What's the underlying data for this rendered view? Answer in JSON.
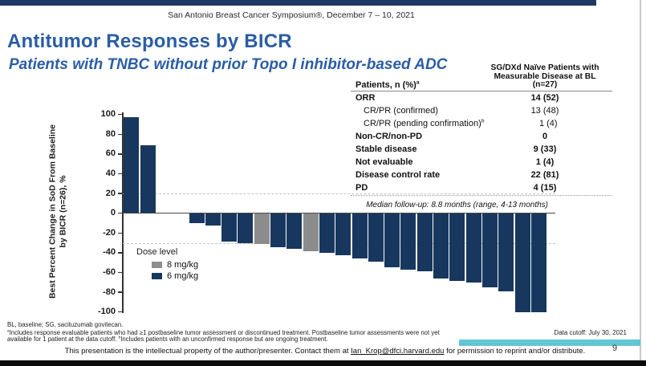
{
  "colors": {
    "accent_blue": "#2a5da4",
    "top_bar_navy": "#1f3864",
    "bar_navy": "#17375e",
    "bar_gray": "#8c8c8c",
    "teal_highlight": "#63c6d4",
    "bottom_bar_black": "#0b0b0b"
  },
  "header": {
    "symposium": "San Antonio Breast Cancer Symposium®, December 7 – 10, 2021",
    "title": "Antitumor Responses by BICR",
    "subtitle": "Patients with TNBC without prior Topo I inhibitor-based ADC"
  },
  "table": {
    "col1_header": "Patients, n (%)",
    "col1_header_sup": "a",
    "col2_header_lines": [
      "SG/DXd Naïve Patients with",
      "Measurable Disease at BL",
      "(n=27)"
    ],
    "rows": [
      {
        "label": "ORR",
        "sup": "",
        "value": "14 (52)",
        "bold": true,
        "indent": false
      },
      {
        "label": "CR/PR (confirmed)",
        "sup": "",
        "value": "13 (48)",
        "bold": false,
        "indent": true
      },
      {
        "label": "CR/PR (pending confirmation)",
        "sup": "b",
        "value": "1 (4)",
        "bold": false,
        "indent": true
      },
      {
        "label": "Non-CR/non-PD",
        "sup": "",
        "value": "0",
        "bold": true,
        "indent": false
      },
      {
        "label": "Stable disease",
        "sup": "",
        "value": "9 (33)",
        "bold": true,
        "indent": false
      },
      {
        "label": "Not evaluable",
        "sup": "",
        "value": "1 (4)",
        "bold": true,
        "indent": false
      },
      {
        "label": "Disease control rate",
        "sup": "",
        "value": "22 (81)",
        "bold": true,
        "indent": false
      },
      {
        "label": "PD",
        "sup": "",
        "value": "4 (15)",
        "bold": true,
        "indent": false
      }
    ]
  },
  "chart_data": {
    "type": "bar",
    "subtype": "waterfall",
    "title": "",
    "xlabel": "",
    "ylabel": "Best Percent Change in SoD From Baseline by BICR (n=26), %",
    "ylabel_lines": [
      "Best Percent Change in SoD From Baseline",
      "by BICR (n=26), %"
    ],
    "ylim": [
      -100,
      100
    ],
    "yticks": [
      100,
      80,
      60,
      40,
      20,
      0,
      -20,
      -40,
      -60,
      -80,
      -100
    ],
    "reference_lines": [
      20,
      -30
    ],
    "grid": "dashed horizontal reference lines at +20 and -30 only",
    "legend": {
      "title": "Dose level",
      "position": "inside-lower-left",
      "items": [
        {
          "label": "8 mg/kg",
          "dose": "8",
          "color": "#8c8c8c"
        },
        {
          "label": "6 mg/kg",
          "dose": "6",
          "color": "#17375e"
        }
      ]
    },
    "annotation": "Median follow-up: 8.8 months (range, 4-13 months)",
    "bars": [
      {
        "value": 97,
        "dose": "6"
      },
      {
        "value": 69,
        "dose": "6"
      },
      {
        "value": 0,
        "dose": "6"
      },
      {
        "value": 0,
        "dose": "6"
      },
      {
        "value": -10,
        "dose": "6"
      },
      {
        "value": -12,
        "dose": "6"
      },
      {
        "value": -28,
        "dose": "6"
      },
      {
        "value": -30,
        "dose": "6"
      },
      {
        "value": -31,
        "dose": "8"
      },
      {
        "value": -34,
        "dose": "6"
      },
      {
        "value": -36,
        "dose": "6"
      },
      {
        "value": -38,
        "dose": "8"
      },
      {
        "value": -40,
        "dose": "6"
      },
      {
        "value": -42,
        "dose": "6"
      },
      {
        "value": -45,
        "dose": "6"
      },
      {
        "value": -49,
        "dose": "6"
      },
      {
        "value": -54,
        "dose": "6"
      },
      {
        "value": -57,
        "dose": "6"
      },
      {
        "value": -58,
        "dose": "6"
      },
      {
        "value": -66,
        "dose": "6"
      },
      {
        "value": -68,
        "dose": "6"
      },
      {
        "value": -70,
        "dose": "6"
      },
      {
        "value": -75,
        "dose": "6"
      },
      {
        "value": -79,
        "dose": "6"
      },
      {
        "value": -100,
        "dose": "6"
      },
      {
        "value": -100,
        "dose": "6"
      }
    ]
  },
  "footnotes": {
    "abbreviations": "BL, baseline; SG, sacituzumab govitecan.",
    "a_sup": "a",
    "a_text": "Includes response evaluable patients who had ≥1 postbaseline tumor assessment or discontinued treatment. Postbaseline tumor assessments were not yet available for 1 patient at the data cutoff. ",
    "b_sup": "b",
    "b_text": "Includes patients with an unconfirmed response but are ongoing treatment."
  },
  "data_cutoff": "Data cutoff: July 30, 2021",
  "footer": {
    "text_before_link": "This presentation is the intellectual property of the author/presenter. Contact them at ",
    "email": "Ian_Krop@dfci.harvard.edu",
    "text_after_link": " for permission to reprint and/or distribute.",
    "page_number": "9"
  }
}
